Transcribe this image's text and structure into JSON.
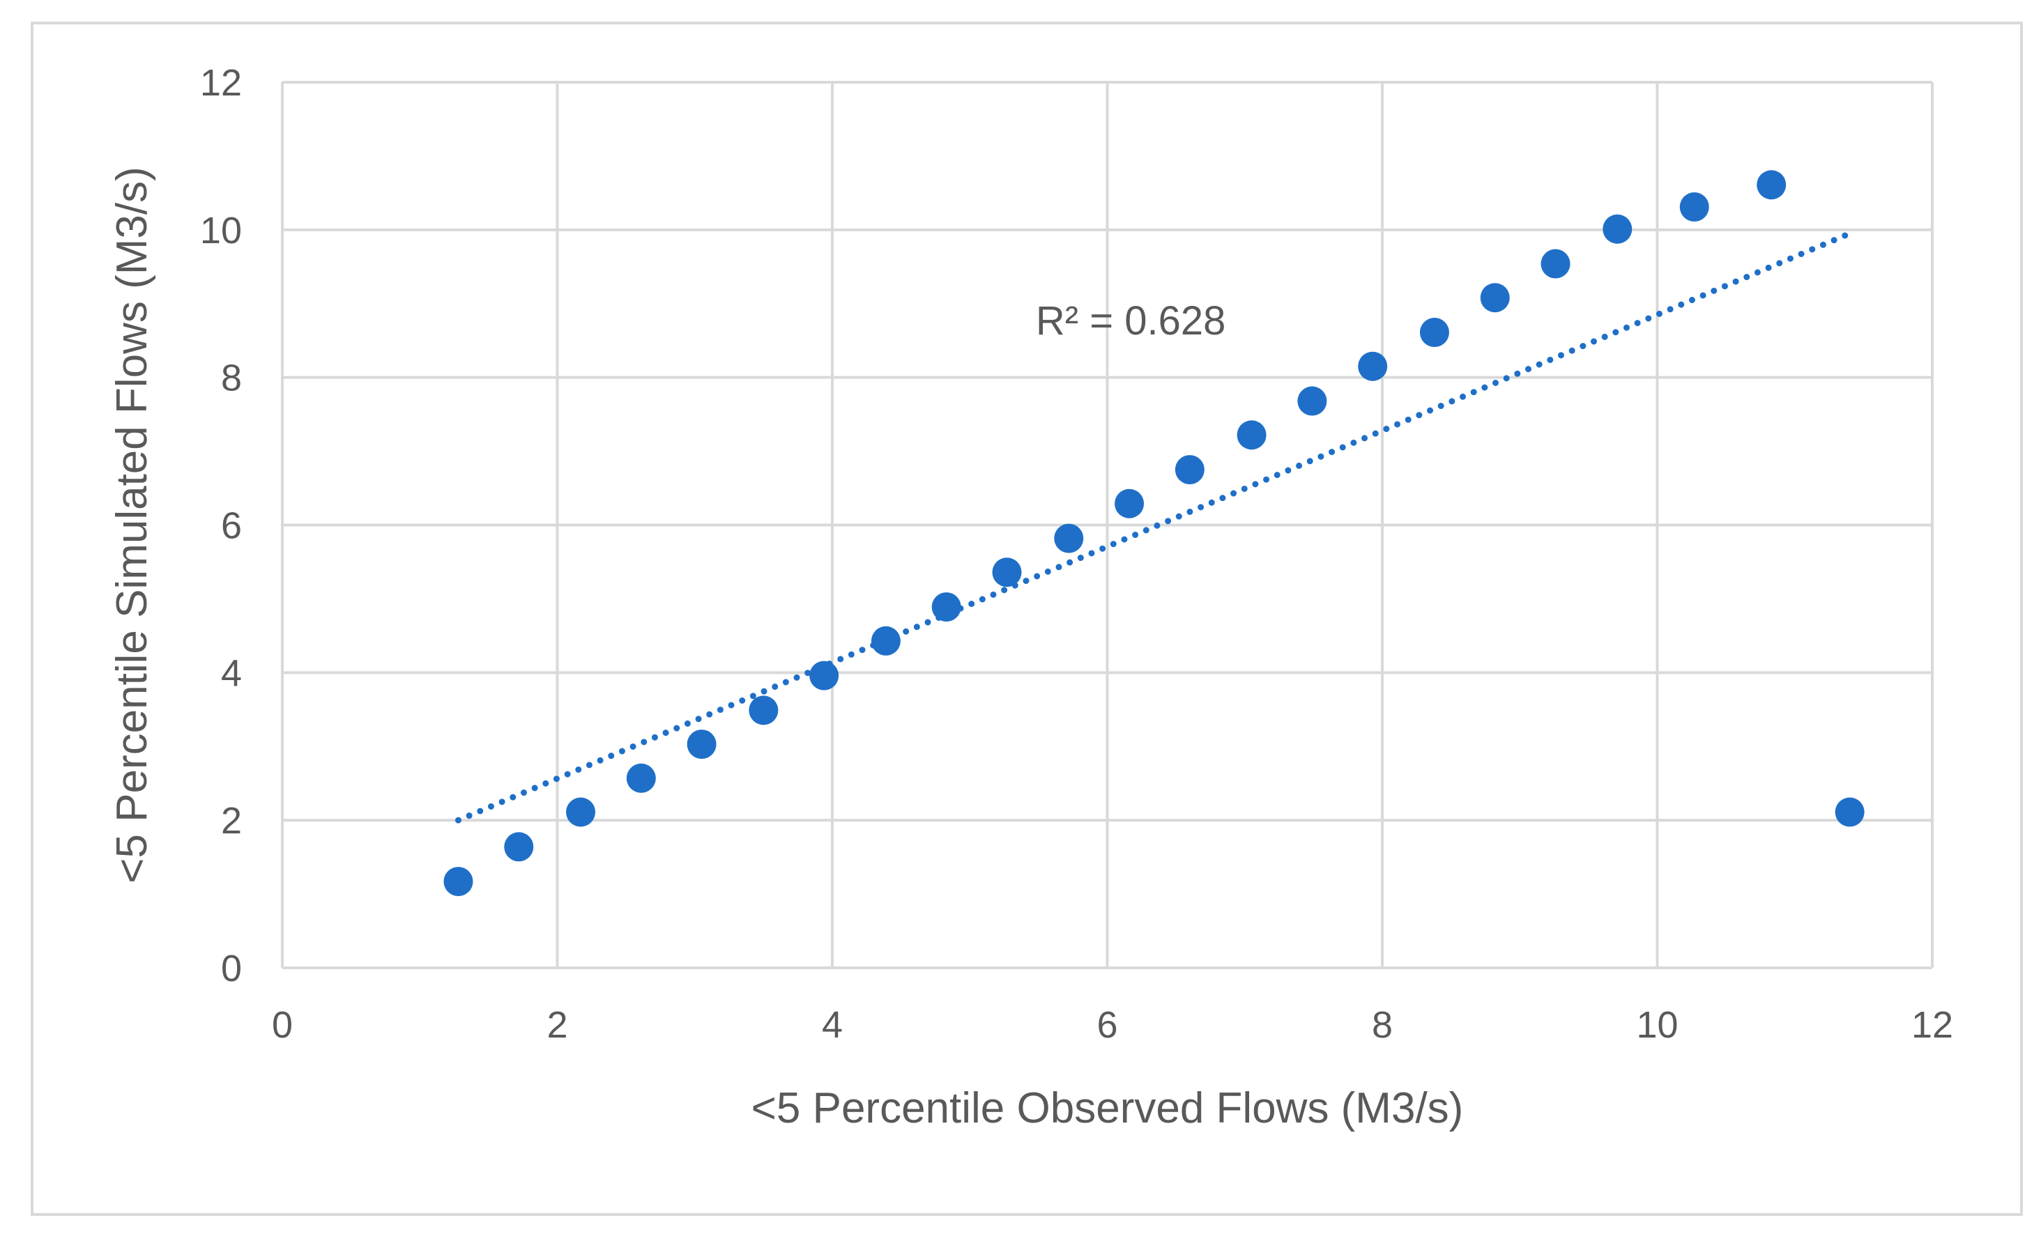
{
  "chart_data": {
    "type": "scatter",
    "title": "",
    "xlabel": "<5 Percentile Observed Flows (M3/s)",
    "ylabel": "<5 Percentile Simulated Flows (M3/s)",
    "xlim": [
      0,
      12
    ],
    "ylim": [
      0,
      12
    ],
    "x_ticks": [
      "0",
      "2",
      "4",
      "6",
      "8",
      "10",
      "12"
    ],
    "y_ticks": [
      "0",
      "2",
      "4",
      "6",
      "8",
      "10",
      "12"
    ],
    "grid": true,
    "legend": "none",
    "marker_color": "#1f6fc8",
    "series": [
      {
        "points": [
          {
            "x": 1.28,
            "y": 1.17
          },
          {
            "x": 1.72,
            "y": 1.64
          },
          {
            "x": 2.17,
            "y": 2.11
          },
          {
            "x": 2.61,
            "y": 2.57
          },
          {
            "x": 3.05,
            "y": 3.03
          },
          {
            "x": 3.5,
            "y": 3.49
          },
          {
            "x": 3.94,
            "y": 3.96
          },
          {
            "x": 4.39,
            "y": 4.43
          },
          {
            "x": 4.83,
            "y": 4.89
          },
          {
            "x": 5.27,
            "y": 5.36
          },
          {
            "x": 5.72,
            "y": 5.82
          },
          {
            "x": 6.16,
            "y": 6.29
          },
          {
            "x": 6.6,
            "y": 6.75
          },
          {
            "x": 7.05,
            "y": 7.22
          },
          {
            "x": 7.49,
            "y": 7.68
          },
          {
            "x": 7.93,
            "y": 8.15
          },
          {
            "x": 8.38,
            "y": 8.61
          },
          {
            "x": 8.82,
            "y": 9.08
          },
          {
            "x": 9.26,
            "y": 9.54
          },
          {
            "x": 9.71,
            "y": 10.01
          },
          {
            "x": 10.27,
            "y": 10.31
          },
          {
            "x": 10.83,
            "y": 10.61
          },
          {
            "x": 11.4,
            "y": 2.11
          }
        ]
      }
    ],
    "trendline": {
      "style": "dotted",
      "color": "#1f6fc8",
      "x": [
        1.28,
        11.4
      ],
      "y": [
        2.0,
        9.95
      ]
    },
    "annotation": {
      "text": "R² = 0.628",
      "x": 5.48,
      "y": 8.58
    }
  }
}
